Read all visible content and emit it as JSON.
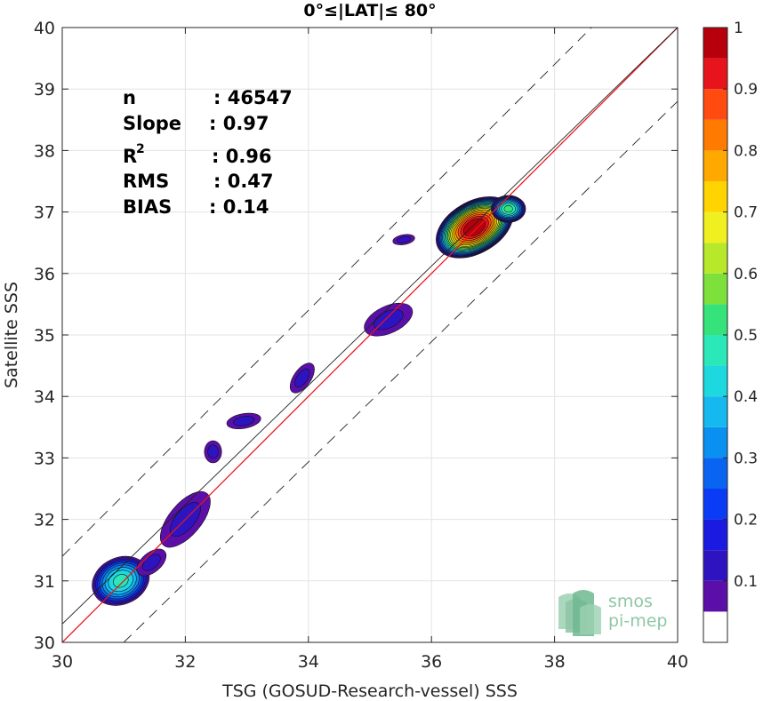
{
  "chart_data": {
    "type": "contour-density",
    "title": "0°≤|LAT|≤ 80°",
    "xlabel": "TSG (GOSUD-Research-vessel) SSS",
    "ylabel": "Satellite SSS",
    "xlim": [
      30,
      40
    ],
    "ylim": [
      30,
      40
    ],
    "xticks": [
      "30",
      "32",
      "34",
      "36",
      "38",
      "40"
    ],
    "yticks": [
      "30",
      "31",
      "32",
      "33",
      "34",
      "35",
      "36",
      "37",
      "38",
      "39",
      "40"
    ],
    "grid": true,
    "stats": {
      "n_label": "n",
      "n_value": ": 46547",
      "slope_label": "Slope",
      "slope_value": ": 0.97",
      "r2_label": "R",
      "r2_sup": "2",
      "r2_value": ": 0.96",
      "rms_label": "RMS",
      "rms_value": ": 0.47",
      "bias_label": "BIAS",
      "bias_value": ": 0.14"
    },
    "lines": [
      {
        "kind": "identity",
        "color": "#e8141b",
        "x": [
          30,
          40
        ],
        "y": [
          30,
          40
        ]
      },
      {
        "kind": "regression",
        "color": "#222222",
        "x": [
          30,
          40
        ],
        "y": [
          30.3,
          40.0
        ]
      },
      {
        "kind": "upper_bound",
        "color": "#222222",
        "dashed": true,
        "x": [
          30,
          38.6
        ],
        "y": [
          31.4,
          40.0
        ]
      },
      {
        "kind": "lower_bound",
        "color": "#222222",
        "dashed": true,
        "x": [
          31.0,
          40
        ],
        "y": [
          30.0,
          38.8
        ]
      }
    ],
    "clusters": [
      {
        "cx": 36.7,
        "cy": 36.75,
        "rx": 0.68,
        "ry": 0.42,
        "rot": -30,
        "peak": 1.0
      },
      {
        "cx": 37.25,
        "cy": 37.05,
        "rx": 0.28,
        "ry": 0.22,
        "rot": 0,
        "peak": 0.5
      },
      {
        "cx": 30.95,
        "cy": 31.0,
        "rx": 0.48,
        "ry": 0.38,
        "rot": -25,
        "peak": 0.45
      },
      {
        "cx": 32.0,
        "cy": 32.0,
        "rx": 0.55,
        "ry": 0.26,
        "rot": -50,
        "peak": 0.1
      },
      {
        "cx": 31.45,
        "cy": 31.3,
        "rx": 0.28,
        "ry": 0.16,
        "rot": -40,
        "peak": 0.1
      },
      {
        "cx": 35.3,
        "cy": 35.25,
        "rx": 0.42,
        "ry": 0.22,
        "rot": -25,
        "peak": 0.1
      },
      {
        "cx": 35.55,
        "cy": 36.55,
        "rx": 0.18,
        "ry": 0.08,
        "rot": -10,
        "peak": 0.1
      },
      {
        "cx": 33.9,
        "cy": 34.3,
        "rx": 0.28,
        "ry": 0.14,
        "rot": -55,
        "peak": 0.1
      },
      {
        "cx": 32.95,
        "cy": 33.6,
        "rx": 0.28,
        "ry": 0.12,
        "rot": -10,
        "peak": 0.1
      },
      {
        "cx": 32.45,
        "cy": 33.1,
        "rx": 0.14,
        "ry": 0.18,
        "rot": 0,
        "peak": 0.1
      }
    ],
    "colorbar": {
      "range": [
        0,
        1
      ],
      "ticks": [
        "0.1",
        "0.2",
        "0.3",
        "0.4",
        "0.5",
        "0.6",
        "0.7",
        "0.8",
        "0.9",
        "1"
      ],
      "levels": [
        0.05,
        0.1,
        0.15,
        0.2,
        0.25,
        0.3,
        0.35,
        0.4,
        0.45,
        0.5,
        0.55,
        0.6,
        0.65,
        0.7,
        0.75,
        0.8,
        0.85,
        0.9,
        0.95
      ],
      "colors": [
        "#ffffff",
        "#5b0fa8",
        "#2d14c0",
        "#1a1ae0",
        "#0a3cf5",
        "#0a64f2",
        "#0a90f0",
        "#16b8f0",
        "#1ed8e0",
        "#2ae8b8",
        "#36e27a",
        "#7ee03a",
        "#b8e82a",
        "#f0f020",
        "#ffd400",
        "#ffa800",
        "#ff7a00",
        "#ff4a10",
        "#e8141b",
        "#b8000c"
      ]
    },
    "watermark": {
      "line1": "smos",
      "line2": "pi-mep"
    }
  }
}
